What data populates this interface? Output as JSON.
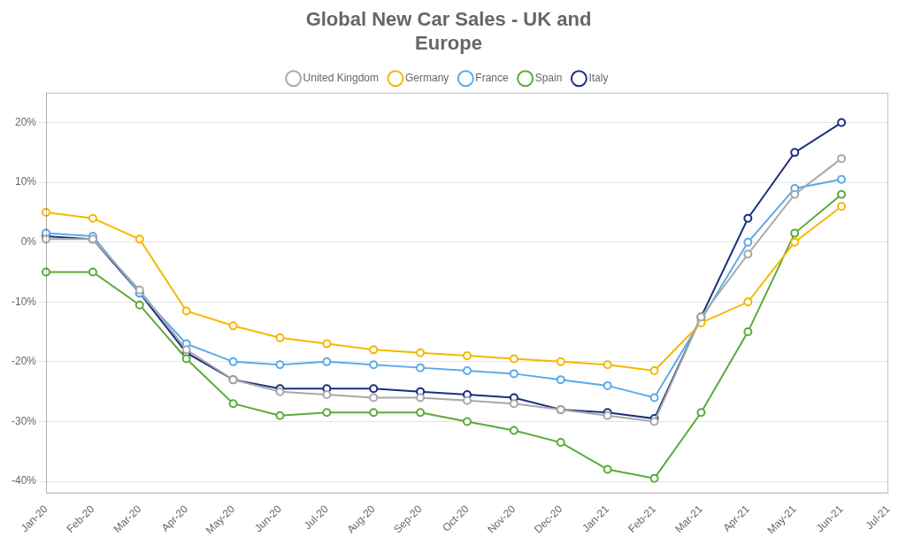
{
  "chart_data": {
    "type": "line",
    "title": "Global New Car Sales - UK and\nEurope",
    "categories": [
      "Jan-20",
      "Feb-20",
      "Mar-20",
      "Apr-20",
      "May-20",
      "Jun-20",
      "Jul-20",
      "Aug-20",
      "Sep-20",
      "Oct-20",
      "Nov-20",
      "Dec-20",
      "Jan-21",
      "Feb-21",
      "Mar-21",
      "Apr-21",
      "May-21",
      "Jun-21",
      "Jul-21"
    ],
    "series": [
      {
        "name": "United Kingdom",
        "color": "#a8a8a8",
        "values": [
          0.5,
          0.5,
          -8.0,
          -18.0,
          -23.0,
          -25.0,
          -25.5,
          -26.0,
          -26.0,
          -26.5,
          -27.0,
          -28.0,
          -29.0,
          -30.0,
          -12.5,
          -2.0,
          8.0,
          14.0,
          null
        ]
      },
      {
        "name": "Germany",
        "color": "#f5b800",
        "values": [
          5.0,
          4.0,
          0.5,
          -11.5,
          -14.0,
          -16.0,
          -17.0,
          -18.0,
          -18.5,
          -19.0,
          -19.5,
          -20.0,
          -20.5,
          -21.5,
          -13.5,
          -10.0,
          0.0,
          6.0,
          null
        ]
      },
      {
        "name": "France",
        "color": "#5baae8",
        "values": [
          1.5,
          1.0,
          -8.5,
          -17.0,
          -20.0,
          -20.5,
          -20.0,
          -20.5,
          -21.0,
          -21.5,
          -22.0,
          -23.0,
          -24.0,
          -26.0,
          -13.0,
          0.0,
          9.0,
          10.5,
          null
        ]
      },
      {
        "name": "Spain",
        "color": "#5aaa3a",
        "values": [
          -5.0,
          -5.0,
          -10.5,
          -19.5,
          -27.0,
          -29.0,
          -28.5,
          -28.5,
          -28.5,
          -30.0,
          -31.5,
          -33.5,
          -38.0,
          -39.5,
          -28.5,
          -15.0,
          1.5,
          8.0,
          null
        ]
      },
      {
        "name": "Italy",
        "color": "#1a2f80",
        "values": [
          1.0,
          0.5,
          -8.5,
          -18.5,
          -23.0,
          -24.5,
          -24.5,
          -24.5,
          -25.0,
          -25.5,
          -26.0,
          -28.0,
          -28.5,
          -29.5,
          -12.5,
          4.0,
          15.0,
          20.0,
          null
        ]
      }
    ],
    "ylim": [
      -42,
      25
    ],
    "yticks": [
      {
        "value": -40,
        "label": "-40%"
      },
      {
        "value": -30,
        "label": "-30%"
      },
      {
        "value": -20,
        "label": "-20%"
      },
      {
        "value": -10,
        "label": "-10%"
      },
      {
        "value": 0,
        "label": "0%"
      },
      {
        "value": 10,
        "label": "10%"
      },
      {
        "value": 20,
        "label": "20%"
      }
    ],
    "grid": true,
    "legend": "top",
    "marker": "circle",
    "line_style": "solid"
  }
}
